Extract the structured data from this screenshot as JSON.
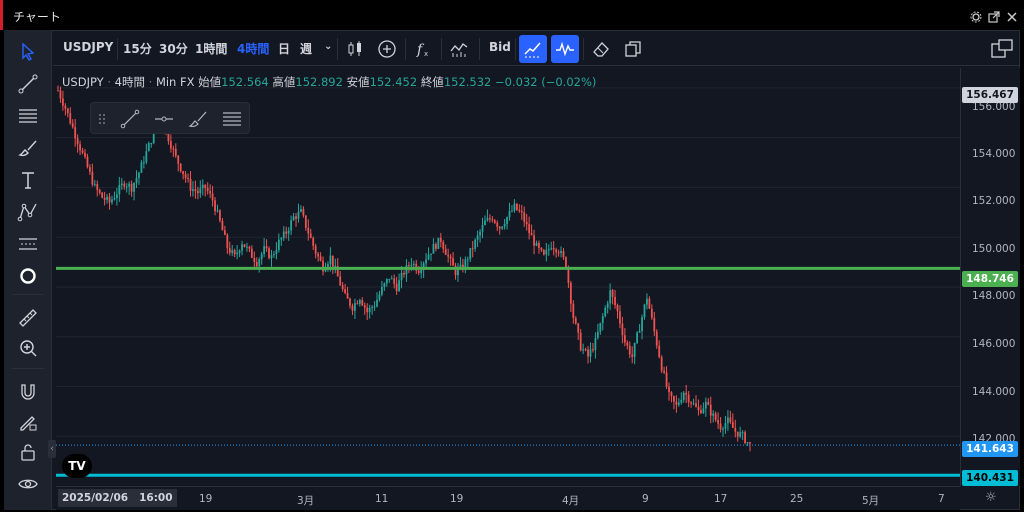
{
  "window": {
    "title": "チャート"
  },
  "toolbar": {
    "symbol": "USDJPY",
    "intervals": [
      "15分",
      "30分",
      "1時間",
      "4時間",
      "日",
      "週"
    ],
    "active_interval": "4時間",
    "bid_label": "Bid"
  },
  "legend": {
    "symbol": "USDJPY",
    "interval": "4時間",
    "source": "Min FX",
    "open_label": "始値",
    "open": "152.564",
    "high_label": "高値",
    "high": "152.892",
    "low_label": "安値",
    "low": "152.452",
    "close_label": "終値",
    "close": "152.532",
    "change": "−0.032 (−0.02%)"
  },
  "price_axis": {
    "ticks": [
      "156.000",
      "154.000",
      "152.000",
      "150.000",
      "148.000",
      "146.000",
      "144.000",
      "142.000"
    ],
    "top_tag": "156.467",
    "green_line_value": "148.746",
    "last_price": "141.643",
    "cyan_line_value": "140.431"
  },
  "time_axis": {
    "current_date": "2025/02/06",
    "current_time": "16:00",
    "ticks": [
      "19",
      "3月",
      "11",
      "19",
      "4月",
      "9",
      "17",
      "25",
      "5月",
      "7"
    ]
  },
  "colors": {
    "up": "#26a69a",
    "down": "#ef5350",
    "green_line": "#4caf50",
    "cyan_line": "#00bcd4",
    "accent": "#2962ff",
    "brand": "#d0202a"
  },
  "chart_data": {
    "type": "candlestick",
    "symbol": "USDJPY",
    "interval": "4時間",
    "ylim": [
      140.0,
      156.8
    ],
    "horizontal_lines": [
      148.746,
      140.431
    ],
    "last_price": 141.643,
    "path": [
      [
        0,
        155.9
      ],
      [
        3,
        155.2
      ],
      [
        6,
        154.4
      ],
      [
        9,
        153.6
      ],
      [
        12,
        152.8
      ],
      [
        15,
        152.0
      ],
      [
        18,
        151.6
      ],
      [
        21,
        151.4
      ],
      [
        24,
        151.8
      ],
      [
        27,
        152.2
      ],
      [
        30,
        152.0
      ],
      [
        33,
        152.6
      ],
      [
        36,
        153.4
      ],
      [
        39,
        154.2
      ],
      [
        42,
        154.6
      ],
      [
        45,
        154.0
      ],
      [
        48,
        153.2
      ],
      [
        51,
        152.6
      ],
      [
        54,
        152.0
      ],
      [
        57,
        151.8
      ],
      [
        60,
        152.0
      ],
      [
        63,
        151.5
      ],
      [
        66,
        150.6
      ],
      [
        69,
        149.6
      ],
      [
        72,
        149.2
      ],
      [
        75,
        149.8
      ],
      [
        78,
        149.4
      ],
      [
        81,
        149.0
      ],
      [
        84,
        149.5
      ],
      [
        87,
        149.2
      ],
      [
        90,
        149.8
      ],
      [
        93,
        150.2
      ],
      [
        96,
        150.8
      ],
      [
        99,
        151.0
      ],
      [
        102,
        150.2
      ],
      [
        105,
        149.4
      ],
      [
        108,
        148.8
      ],
      [
        111,
        149.2
      ],
      [
        114,
        148.4
      ],
      [
        117,
        147.6
      ],
      [
        120,
        147.2
      ],
      [
        123,
        147.6
      ],
      [
        126,
        147.0
      ],
      [
        129,
        147.3
      ],
      [
        132,
        147.9
      ],
      [
        135,
        148.4
      ],
      [
        138,
        148.0
      ],
      [
        141,
        148.6
      ],
      [
        144,
        149.0
      ],
      [
        147,
        148.7
      ],
      [
        150,
        149.2
      ],
      [
        153,
        149.6
      ],
      [
        156,
        149.9
      ],
      [
        159,
        149.2
      ],
      [
        162,
        148.6
      ],
      [
        165,
        148.8
      ],
      [
        168,
        149.4
      ],
      [
        171,
        150.0
      ],
      [
        174,
        150.6
      ],
      [
        177,
        150.8
      ],
      [
        180,
        150.4
      ],
      [
        183,
        150.8
      ],
      [
        186,
        151.2
      ],
      [
        189,
        150.9
      ],
      [
        192,
        150.2
      ],
      [
        195,
        149.6
      ],
      [
        198,
        149.2
      ],
      [
        201,
        149.7
      ],
      [
        204,
        149.5
      ],
      [
        207,
        148.9
      ],
      [
        210,
        146.8
      ],
      [
        213,
        145.6
      ],
      [
        216,
        145.2
      ],
      [
        219,
        145.8
      ],
      [
        222,
        146.8
      ],
      [
        225,
        147.8
      ],
      [
        228,
        147.0
      ],
      [
        231,
        145.8
      ],
      [
        234,
        145.2
      ],
      [
        237,
        146.4
      ],
      [
        240,
        147.6
      ],
      [
        243,
        146.2
      ],
      [
        246,
        144.8
      ],
      [
        249,
        143.6
      ],
      [
        252,
        143.2
      ],
      [
        255,
        143.8
      ],
      [
        258,
        143.4
      ],
      [
        261,
        143.0
      ],
      [
        264,
        143.3
      ],
      [
        267,
        142.8
      ],
      [
        270,
        142.4
      ],
      [
        273,
        142.6
      ],
      [
        276,
        142.2
      ],
      [
        279,
        142.0
      ],
      [
        282,
        141.64
      ]
    ]
  }
}
